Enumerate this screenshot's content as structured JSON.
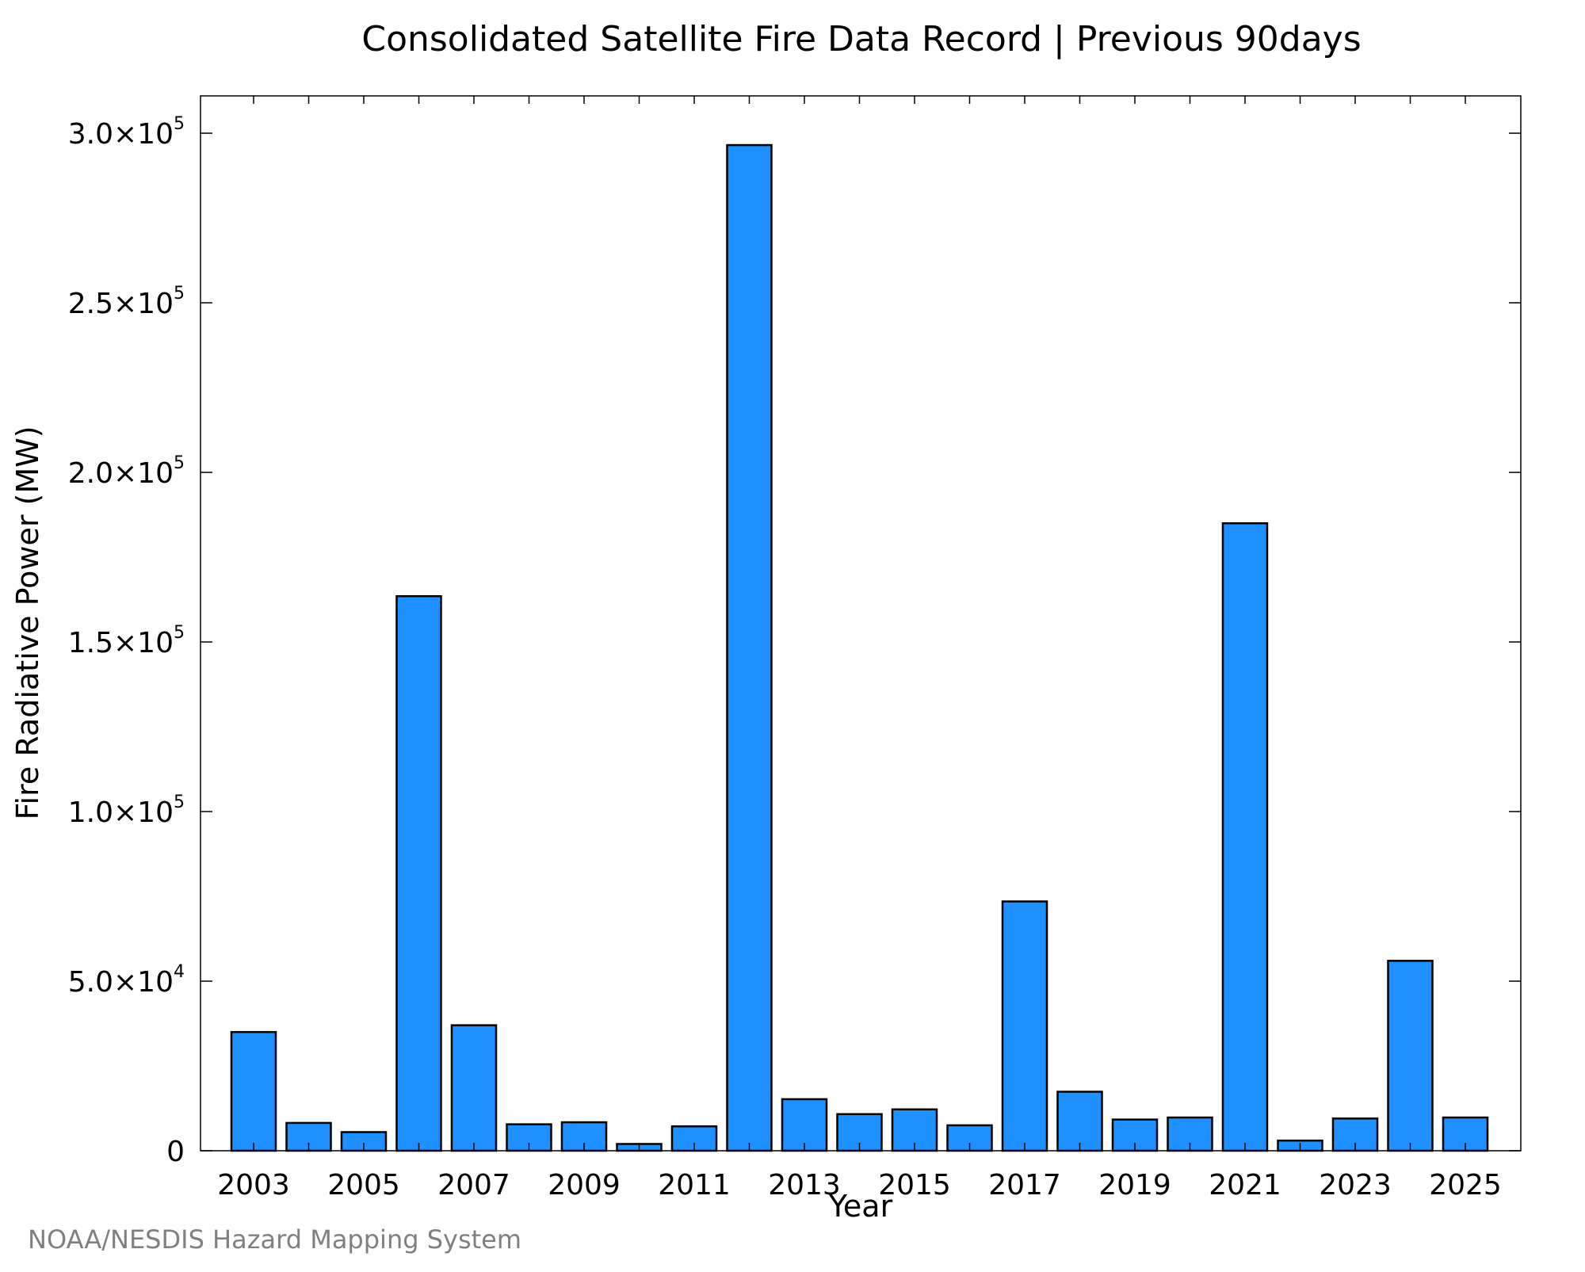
{
  "chart_data": {
    "type": "bar",
    "title": "Consolidated Satellite Fire Data Record | Previous 90days",
    "xlabel": "Year",
    "ylabel": "Fire Radiative Power (MW)",
    "categories": [
      "2003",
      "2004",
      "2005",
      "2006",
      "2007",
      "2008",
      "2009",
      "2010",
      "2011",
      "2012",
      "2013",
      "2014",
      "2015",
      "2016",
      "2017",
      "2018",
      "2019",
      "2020",
      "2021",
      "2022",
      "2023",
      "2024",
      "2025"
    ],
    "values": [
      35000,
      8200,
      5500,
      163500,
      37000,
      7800,
      8400,
      2000,
      7200,
      296500,
      15200,
      10800,
      12200,
      7500,
      73500,
      17400,
      9200,
      9800,
      185000,
      3000,
      9500,
      56000,
      9800
    ],
    "ylim": [
      0,
      311000
    ],
    "x_tick_labels": [
      "2003",
      "2005",
      "2007",
      "2009",
      "2011",
      "2013",
      "2015",
      "2017",
      "2019",
      "2021",
      "2023",
      "2025"
    ],
    "y_ticks": [
      {
        "value": 0,
        "mantissa": "0",
        "exponent": ""
      },
      {
        "value": 50000,
        "mantissa": "5.0×10",
        "exponent": "4"
      },
      {
        "value": 100000,
        "mantissa": "1.0×10",
        "exponent": "5"
      },
      {
        "value": 150000,
        "mantissa": "1.5×10",
        "exponent": "5"
      },
      {
        "value": 200000,
        "mantissa": "2.0×10",
        "exponent": "5"
      },
      {
        "value": 250000,
        "mantissa": "2.5×10",
        "exponent": "5"
      },
      {
        "value": 300000,
        "mantissa": "3.0×10",
        "exponent": "5"
      }
    ],
    "grid": false,
    "legend": "none",
    "bar_color": "#1e90ff",
    "bar_edge_color": "#000000"
  },
  "credit": "NOAA/NESDIS Hazard Mapping System"
}
